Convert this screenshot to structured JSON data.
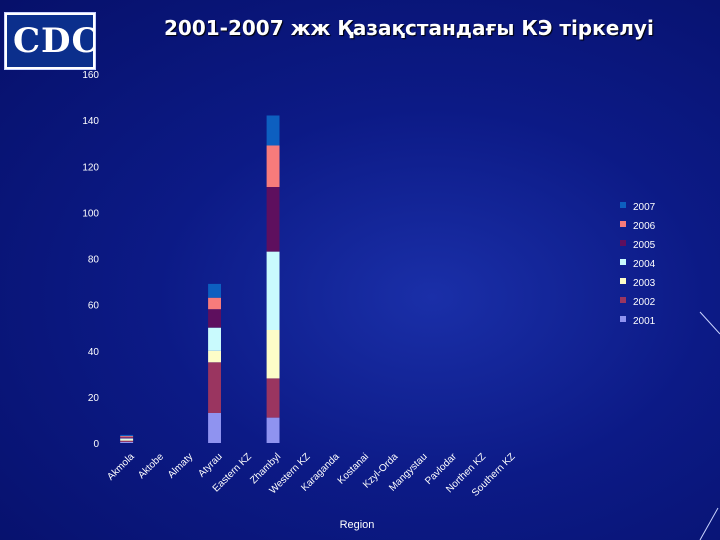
{
  "logo": {
    "text": "CDC"
  },
  "title": "2001-2007 жж Қазақстандағы КЭ тіркелуі",
  "chart_data": {
    "type": "bar",
    "stacked": true,
    "title": "2001-2007 жж Қазақстандағы КЭ тіркелуі",
    "xlabel": "Region",
    "ylabel": "",
    "ylim": [
      0,
      160
    ],
    "yticks": [
      0,
      20,
      40,
      60,
      80,
      100,
      120,
      140,
      160
    ],
    "grid": false,
    "legend_position": "right",
    "categories": [
      "Akmola",
      "Aktobe",
      "Almaty",
      "Atyrau",
      "Eastern KZ",
      "Zhambyl",
      "Western KZ",
      "Karaganda",
      "Kostanai",
      "Kzyl-Orda",
      "Mangystau",
      "Pavlodar",
      "Northen KZ",
      "Southern KZ"
    ],
    "series": [
      {
        "name": "2001",
        "color": "#8f93f0",
        "values": [
          0.5,
          0,
          0,
          13,
          0,
          11,
          0,
          0,
          0,
          0,
          0,
          0,
          0,
          0
        ]
      },
      {
        "name": "2002",
        "color": "#9a3560",
        "values": [
          0.5,
          0,
          0,
          22,
          0,
          17,
          0,
          0,
          0,
          0,
          0,
          0,
          0,
          0
        ]
      },
      {
        "name": "2003",
        "color": "#fdfdc8",
        "values": [
          0.5,
          0,
          0,
          5,
          0,
          21,
          0,
          0,
          0,
          0,
          0,
          0,
          0,
          0
        ]
      },
      {
        "name": "2004",
        "color": "#c9fafd",
        "values": [
          0.5,
          0,
          0,
          10,
          0,
          34,
          0,
          0,
          0,
          0,
          0,
          0,
          0,
          0
        ]
      },
      {
        "name": "2005",
        "color": "#5e0f5e",
        "values": [
          0.5,
          0,
          0,
          8,
          0,
          28,
          0,
          0,
          0,
          0,
          0,
          0,
          0,
          0
        ]
      },
      {
        "name": "2006",
        "color": "#f77b7b",
        "values": [
          0.5,
          0,
          0,
          5,
          0,
          18,
          0,
          0,
          0,
          0,
          0,
          0,
          0,
          0
        ]
      },
      {
        "name": "2007",
        "color": "#0d5fc0",
        "values": [
          0.5,
          0,
          0,
          6,
          0,
          13,
          0,
          0,
          0,
          0,
          0,
          0,
          0,
          0
        ]
      }
    ]
  }
}
